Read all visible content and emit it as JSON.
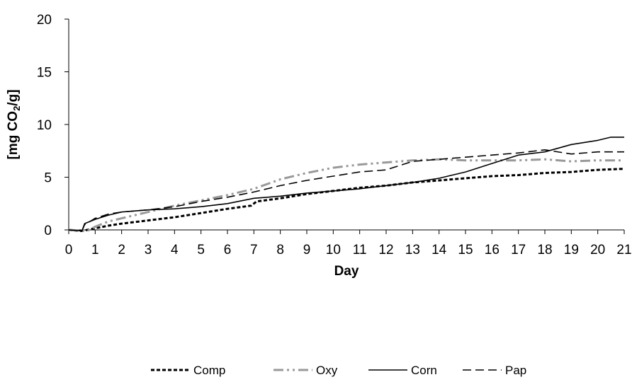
{
  "chart_data": {
    "type": "line",
    "xlabel": "Day",
    "ylabel": {
      "main": "[mg CO",
      "sub": "2",
      "tail": "/g]"
    },
    "xlim": [
      0,
      21
    ],
    "ylim": [
      0,
      20
    ],
    "xticks": [
      "0",
      "1",
      "2",
      "3",
      "4",
      "5",
      "6",
      "7",
      "8",
      "9",
      "10",
      "11",
      "12",
      "13",
      "14",
      "15",
      "16",
      "17",
      "18",
      "19",
      "20",
      "21"
    ],
    "yticks": [
      "0",
      "5",
      "10",
      "15",
      "20"
    ],
    "grid": false,
    "legend_position": "bottom",
    "series": [
      {
        "name": "Comp",
        "color": "#000000",
        "style": "short-dash",
        "points": [
          [
            0,
            0
          ],
          [
            0.5,
            -0.1
          ],
          [
            0.9,
            0.1
          ],
          [
            1.5,
            0.4
          ],
          [
            2,
            0.6
          ],
          [
            3,
            0.9
          ],
          [
            4,
            1.2
          ],
          [
            5,
            1.6
          ],
          [
            6,
            2.0
          ],
          [
            6.9,
            2.3
          ],
          [
            7.1,
            2.7
          ],
          [
            8,
            3.0
          ],
          [
            9,
            3.4
          ],
          [
            10,
            3.7
          ],
          [
            11,
            4.0
          ],
          [
            12,
            4.2
          ],
          [
            13,
            4.5
          ],
          [
            14,
            4.7
          ],
          [
            15,
            4.9
          ],
          [
            16,
            5.1
          ],
          [
            17,
            5.2
          ],
          [
            18,
            5.4
          ],
          [
            19,
            5.5
          ],
          [
            20,
            5.7
          ],
          [
            21,
            5.8
          ]
        ]
      },
      {
        "name": "Oxy",
        "color": "#999999",
        "style": "dash-dot-dot",
        "points": [
          [
            0,
            0
          ],
          [
            0.7,
            -0.1
          ],
          [
            1,
            0.3
          ],
          [
            1.5,
            0.8
          ],
          [
            2,
            1.1
          ],
          [
            3,
            1.7
          ],
          [
            4,
            2.3
          ],
          [
            5,
            2.8
          ],
          [
            6,
            3.3
          ],
          [
            7,
            3.9
          ],
          [
            8,
            4.8
          ],
          [
            9,
            5.4
          ],
          [
            10,
            5.9
          ],
          [
            11,
            6.2
          ],
          [
            12,
            6.4
          ],
          [
            13,
            6.6
          ],
          [
            14,
            6.7
          ],
          [
            15,
            6.6
          ],
          [
            16,
            6.6
          ],
          [
            17,
            6.6
          ],
          [
            18,
            6.7
          ],
          [
            19,
            6.5
          ],
          [
            20,
            6.6
          ],
          [
            21,
            6.6
          ]
        ]
      },
      {
        "name": "Corn",
        "color": "#000000",
        "style": "solid",
        "points": [
          [
            0,
            0
          ],
          [
            0.5,
            -0.1
          ],
          [
            0.6,
            0.6
          ],
          [
            1,
            1.0
          ],
          [
            1.5,
            1.4
          ],
          [
            2,
            1.7
          ],
          [
            3,
            1.9
          ],
          [
            4,
            2.0
          ],
          [
            5,
            2.2
          ],
          [
            6,
            2.5
          ],
          [
            7,
            3.0
          ],
          [
            8,
            3.2
          ],
          [
            9,
            3.5
          ],
          [
            10,
            3.7
          ],
          [
            11,
            3.9
          ],
          [
            12,
            4.2
          ],
          [
            13,
            4.5
          ],
          [
            14,
            4.9
          ],
          [
            15,
            5.5
          ],
          [
            16,
            6.3
          ],
          [
            17,
            7.1
          ],
          [
            18,
            7.4
          ],
          [
            19,
            8.1
          ],
          [
            20,
            8.5
          ],
          [
            20.5,
            8.8
          ],
          [
            21,
            8.8
          ]
        ]
      },
      {
        "name": "Pap",
        "color": "#000000",
        "style": "long-dash",
        "points": [
          [
            0,
            0
          ],
          [
            0.5,
            -0.1
          ],
          [
            0.6,
            0.5
          ],
          [
            1,
            1.1
          ],
          [
            1.5,
            1.5
          ],
          [
            2,
            1.7
          ],
          [
            3,
            1.9
          ],
          [
            4,
            2.2
          ],
          [
            5,
            2.7
          ],
          [
            6,
            3.1
          ],
          [
            7,
            3.6
          ],
          [
            8,
            4.2
          ],
          [
            9,
            4.7
          ],
          [
            10,
            5.1
          ],
          [
            11,
            5.5
          ],
          [
            12,
            5.7
          ],
          [
            13,
            6.5
          ],
          [
            14,
            6.7
          ],
          [
            15,
            6.9
          ],
          [
            16,
            7.1
          ],
          [
            17,
            7.3
          ],
          [
            18,
            7.6
          ],
          [
            19,
            7.2
          ],
          [
            20,
            7.4
          ],
          [
            21,
            7.4
          ]
        ]
      }
    ]
  }
}
